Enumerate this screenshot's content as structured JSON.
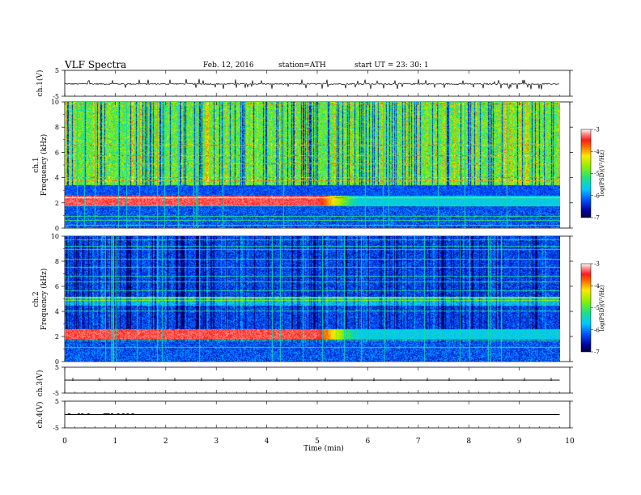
{
  "header": {
    "title": "VLF  Spectra",
    "date": "Feb. 12, 2016",
    "station": "station=ATH",
    "start": "start  UT  =    23: 30: 1"
  },
  "chart_data": [
    {
      "type": "line",
      "panel": "ch1",
      "ylabel": "ch.1(V)",
      "ylim": [
        -5,
        5
      ],
      "yticks": [
        "5",
        "-5"
      ],
      "trace": {
        "baseline": -0.25,
        "noise_amplitude": 0.25,
        "spikes_min": 1.0,
        "spikes_max": 2.0
      }
    },
    {
      "type": "heatmap",
      "panel": "ch1-spectrogram",
      "ylabel": "ch.1\nFrequency  (kHz)",
      "ylabel_lines": [
        "ch.1",
        "Frequency  (kHz)"
      ],
      "ylim": [
        0,
        10
      ],
      "yticks": [
        "0",
        "2",
        "4",
        "6",
        "8",
        "10"
      ],
      "colorbar": {
        "label": "log(PSD)(V²/Hz)",
        "range": [
          -7,
          -3
        ],
        "ticks": [
          "-3",
          "-4",
          "-5",
          "-6",
          "-7"
        ]
      },
      "features": {
        "band_khz": [
          1.8,
          2.6
        ],
        "band_end_min": 5.6,
        "broadband_until_min": 9.8,
        "active_upper_khz": 3.2
      }
    },
    {
      "type": "heatmap",
      "panel": "ch2-spectrogram",
      "ylabel_lines": [
        "ch.2",
        "Frequency  (kHz)"
      ],
      "ylim": [
        0,
        10
      ],
      "yticks": [
        "0",
        "2",
        "4",
        "6",
        "8",
        "10"
      ],
      "colorbar": {
        "label": "log(PSD)(V²/Hz)",
        "range": [
          -7,
          -3
        ],
        "ticks": [
          "-3",
          "-4",
          "-5",
          "-6",
          "-7"
        ]
      },
      "features": {
        "band_khz": [
          1.8,
          2.6
        ],
        "band_end_min": 5.6,
        "broadband_until_min": 9.8
      }
    },
    {
      "type": "line",
      "panel": "ch3",
      "ylabel": "ch.3(V)",
      "ylim": [
        -5,
        5
      ],
      "yticks": [
        "5",
        "-5"
      ],
      "trace": {
        "value": 0
      }
    },
    {
      "type": "line",
      "panel": "ch4",
      "ylabel": "ch.4(V)",
      "ylim": [
        -5,
        5
      ],
      "yticks": [
        "5",
        "-5"
      ],
      "trace": {
        "value": 0,
        "pulse_value": 0.4,
        "pulse_times_min": [
          0.08,
          0.27,
          0.34,
          0.46,
          0.78,
          0.82,
          0.86,
          0.93,
          1.05,
          1.15,
          1.24,
          1.34
        ]
      }
    }
  ],
  "xaxis": {
    "label": "Time  (min)",
    "range": [
      0,
      10
    ],
    "ticks": [
      "0",
      "1",
      "2",
      "3",
      "4",
      "5",
      "6",
      "7",
      "8",
      "9",
      "10"
    ],
    "data_end_min": 9.8
  }
}
